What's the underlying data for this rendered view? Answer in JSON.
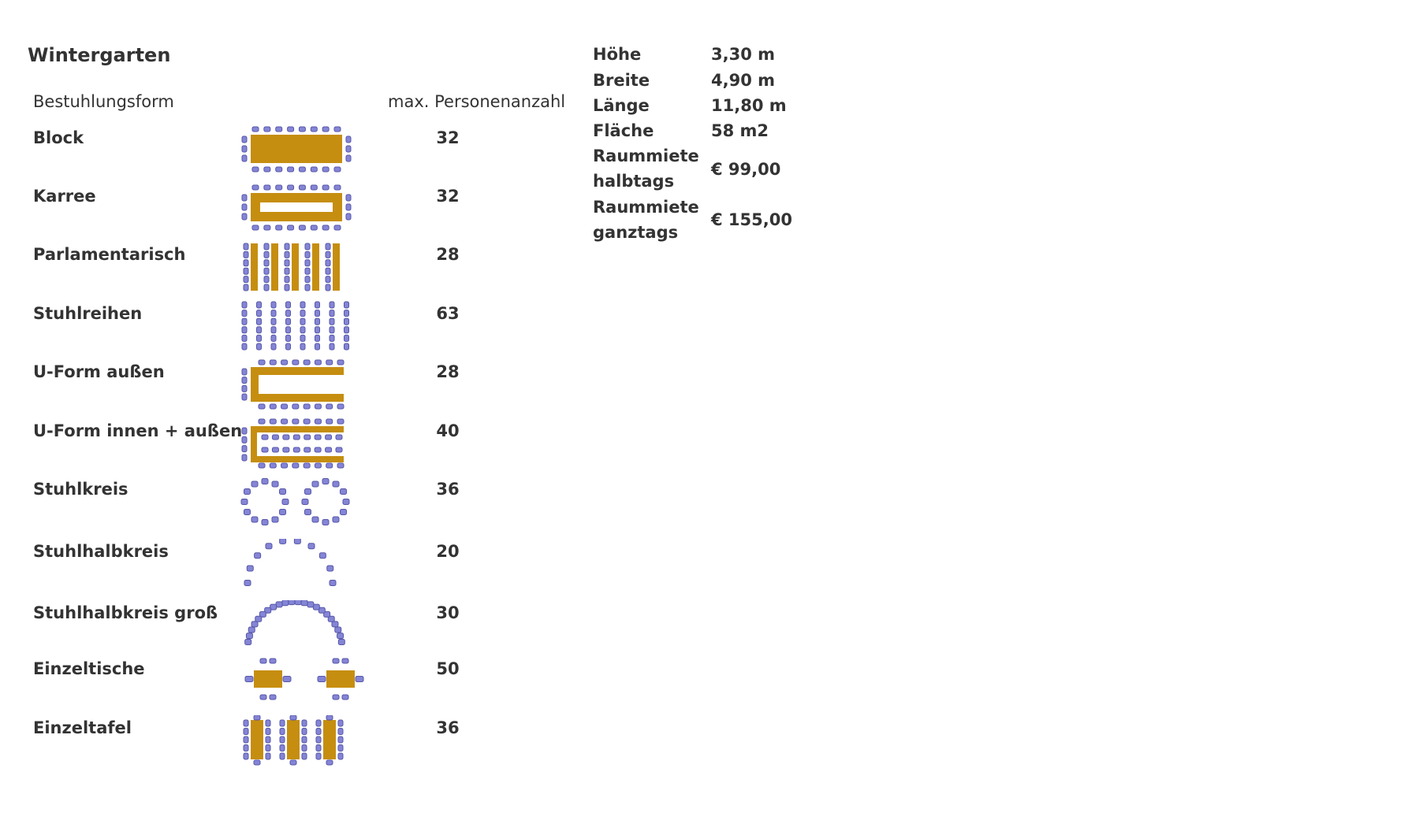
{
  "header": {
    "title": "Wintergarten"
  },
  "table": {
    "columns": [
      "Bestuhlungsform",
      "max. Personenanzahl"
    ],
    "rows": [
      [
        "Block",
        32
      ],
      [
        "Karree",
        32
      ],
      [
        "Parlamentarisch",
        28
      ],
      [
        "Stuhlreihen",
        63
      ],
      [
        "U-Form außen",
        28
      ],
      [
        "U-Form innen + außen",
        40
      ],
      [
        "Stuhlkreis",
        36
      ],
      [
        "Stuhlhalbkreis",
        20
      ],
      [
        "Stuhlhalbkreis groß",
        30
      ],
      [
        "Einzeltische",
        50
      ],
      [
        "Einzeltafel",
        36
      ]
    ]
  },
  "specs": [
    [
      "Höhe",
      "3,30 m"
    ],
    [
      "Breite",
      "4,90 m"
    ],
    [
      "Länge",
      "11,80 m"
    ],
    [
      "Fläche",
      "58 m2"
    ],
    [
      "Raummiete halbtags",
      "€ 99,00"
    ],
    [
      "Raummiete ganztags",
      "€ 155,00"
    ]
  ]
}
